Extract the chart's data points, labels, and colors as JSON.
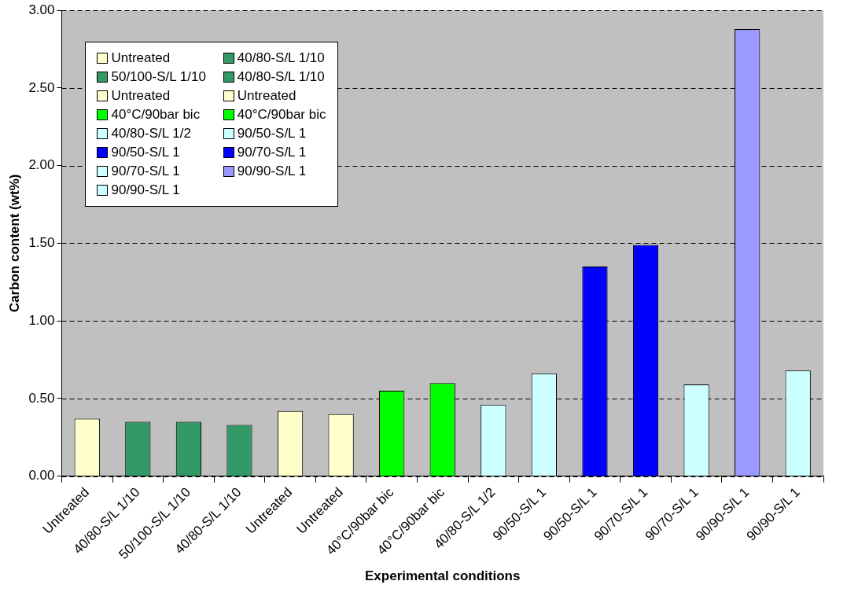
{
  "chart_data": {
    "type": "bar",
    "xlabel": "Experimental conditions",
    "ylabel": "Carbon content (wt%)",
    "categories": [
      "Untreated",
      "40/80-S/L 1/10",
      "50/100-S/L 1/10",
      "40/80-S/L 1/10",
      "Untreated",
      "Untreated",
      "40°C/90bar bic",
      "40°C/90bar bic",
      "40/80-S/L 1/2",
      "90/50-S/L 1",
      "90/50-S/L 1",
      "90/70-S/L 1",
      "90/70-S/L 1",
      "90/90-S/L 1",
      "90/90-S/L 1"
    ],
    "values": [
      0.37,
      0.35,
      0.35,
      0.33,
      0.42,
      0.4,
      0.55,
      0.6,
      0.46,
      0.66,
      1.35,
      1.49,
      0.59,
      2.88,
      0.68
    ],
    "colors": [
      "#ffffcc",
      "#339966",
      "#339966",
      "#339966",
      "#ffffcc",
      "#ffffcc",
      "#00ff00",
      "#00ff00",
      "#ccffff",
      "#ccffff",
      "#0000ff",
      "#0000ff",
      "#ccffff",
      "#9999ff",
      "#ccffff"
    ],
    "ylim": [
      0,
      3
    ],
    "yticks": [
      {
        "value": 0,
        "label": "0.00"
      },
      {
        "value": 0.5,
        "label": "0.50"
      },
      {
        "value": 1,
        "label": "1.00"
      },
      {
        "value": 1.5,
        "label": "1.50"
      },
      {
        "value": 2,
        "label": "2.00"
      },
      {
        "value": 2.5,
        "label": "2.50"
      },
      {
        "value": 3,
        "label": "3.00"
      }
    ],
    "grid": "y"
  }
}
